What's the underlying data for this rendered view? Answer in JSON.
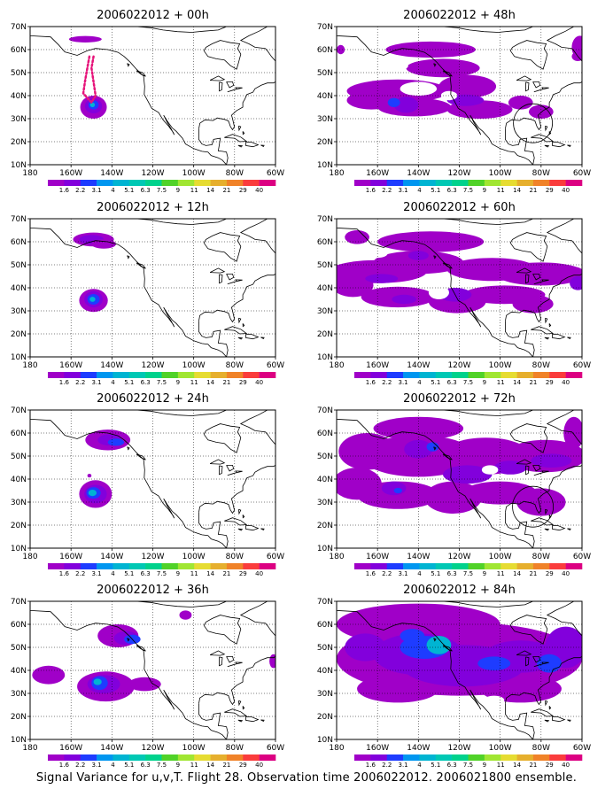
{
  "figure": {
    "caption": "Signal Variance for u,v,T. Flight 28. Observation time 2006022012. 2006021800 ensemble."
  },
  "axes": {
    "x_labels": [
      "180",
      "160W",
      "140W",
      "120W",
      "100W",
      "80W",
      "60W"
    ],
    "y_labels": [
      "10N",
      "20N",
      "30N",
      "40N",
      "50N",
      "60N",
      "70N"
    ]
  },
  "colorbar": {
    "levels": [
      "1.6",
      "2.2",
      "3.1",
      "4",
      "5.1",
      "6.3",
      "7.5",
      "9",
      "11",
      "14",
      "21",
      "29",
      "40"
    ],
    "colors": [
      "#a000c8",
      "#8200dc",
      "#1e3cff",
      "#0096f0",
      "#00b4d2",
      "#00c8b4",
      "#00d28c",
      "#50d228",
      "#a0e632",
      "#e6dc32",
      "#e6af2d",
      "#f08228",
      "#fa3c3c",
      "#dc0082"
    ]
  },
  "panels": [
    {
      "title": "2006022012 + 00h",
      "lead_hours": 0
    },
    {
      "title": "2006022012 + 48h",
      "lead_hours": 48
    },
    {
      "title": "2006022012 + 12h",
      "lead_hours": 12
    },
    {
      "title": "2006022012 + 60h",
      "lead_hours": 60
    },
    {
      "title": "2006022012 + 24h",
      "lead_hours": 24
    },
    {
      "title": "2006022012 + 72h",
      "lead_hours": 72
    },
    {
      "title": "2006022012 + 36h",
      "lead_hours": 36
    },
    {
      "title": "2006022012 + 84h",
      "lead_hours": 84
    }
  ],
  "colors": {
    "shade_light": "#a000c8",
    "shade_mid": "#8200dc",
    "shade_blue": "#1e3cff",
    "shade_core": "#00b4d2",
    "flight_track": "#e6147a",
    "coastline": "#000000"
  }
}
